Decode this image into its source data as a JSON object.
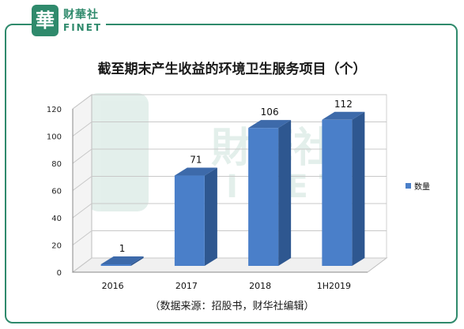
{
  "logo": {
    "seal_char": "華",
    "cn_text": "财華社",
    "en_text": "FINET",
    "watermark_cn": "財華社",
    "watermark_en": "FINET"
  },
  "colors": {
    "brand_green": "#2f8a6c",
    "bar_front": "#4a7fc9",
    "bar_side": "#2e5790",
    "bar_top": "#3d6aaa"
  },
  "chart_data": {
    "type": "bar",
    "title": "截至期末产生收益的环境卫生服务项目（个）",
    "categories": [
      "2016",
      "2017",
      "2018",
      "1H2019"
    ],
    "series": [
      {
        "name": "数量",
        "values": [
          1,
          71,
          106,
          112
        ]
      }
    ],
    "ylim": [
      0,
      120
    ],
    "yticks": [
      0,
      20,
      40,
      60,
      80,
      100,
      120
    ],
    "data_labels": [
      "1",
      "71",
      "106",
      "112"
    ],
    "grid": true,
    "legend": "right",
    "xlabel": "",
    "ylabel": ""
  },
  "source_note": "（数据来源：招股书，财华社编辑）"
}
